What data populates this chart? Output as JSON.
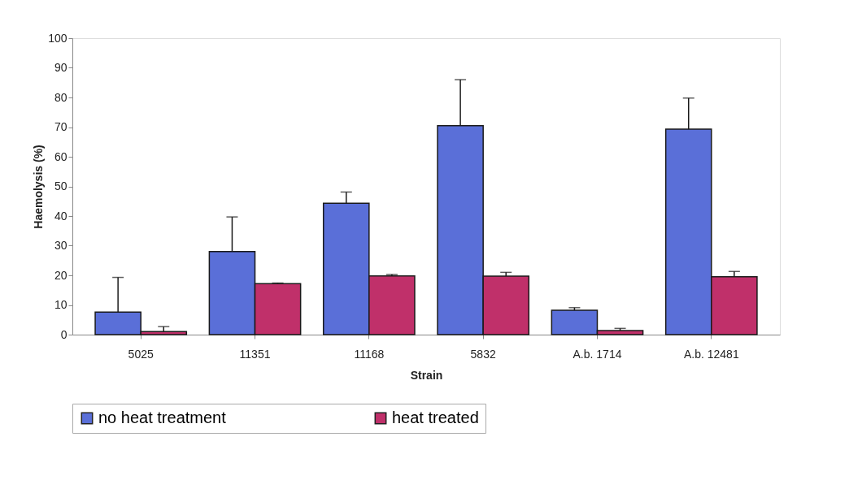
{
  "chart_data": {
    "type": "bar",
    "xlabel": "Strain",
    "ylabel": "Haemolysis (%)",
    "categories": [
      "5025",
      "11351",
      "11168",
      "5832",
      "A.b. 1714",
      "A.b. 12481"
    ],
    "series": [
      {
        "name": "no heat treatment",
        "color": "#5a6fd8",
        "values": [
          7.6,
          28,
          44.3,
          70.5,
          8.2,
          69.3
        ],
        "errors": [
          [
            7.6,
            19.3
          ],
          [
            28,
            39.7
          ],
          [
            44.3,
            48.1
          ],
          [
            70.5,
            86
          ],
          [
            8.2,
            9.1
          ],
          [
            69.3,
            79.8
          ]
        ]
      },
      {
        "name": "heat treated",
        "color": "#c0306a",
        "values": [
          1,
          17.2,
          19.8,
          19.7,
          1.4,
          19.5
        ],
        "errors": [
          [
            1,
            2.7
          ],
          [
            17.2,
            17.4
          ],
          [
            19.8,
            20.3
          ],
          [
            19.7,
            21
          ],
          [
            1.4,
            2.1
          ],
          [
            19.5,
            21.3
          ]
        ]
      }
    ],
    "ylim": [
      0,
      100
    ],
    "yticks": [
      0,
      10,
      20,
      30,
      40,
      50,
      60,
      70,
      80,
      90,
      100
    ],
    "grid": false,
    "legend": "bottom"
  }
}
